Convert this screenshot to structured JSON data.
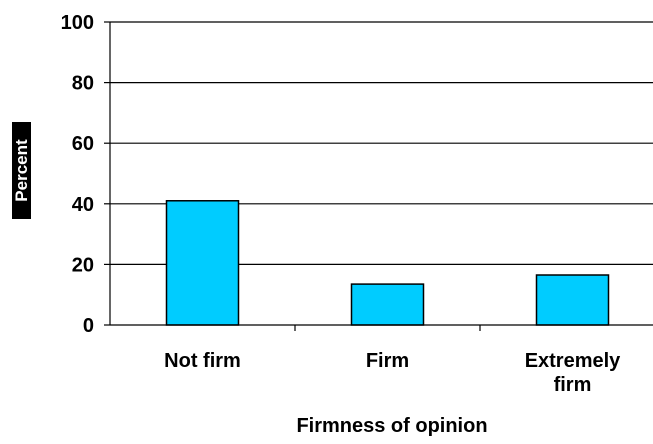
{
  "chart_data": {
    "type": "bar",
    "categories": [
      [
        "Not firm"
      ],
      [
        "Firm"
      ],
      [
        "Extremely",
        "firm"
      ]
    ],
    "values": [
      41,
      13.5,
      16.5
    ],
    "xlabel": "Firmness of opinion",
    "ylabel": "Percent",
    "ylim": [
      0,
      100
    ],
    "yticks": [
      "0",
      "20",
      "40",
      "60",
      "80",
      "100"
    ],
    "grid": true,
    "legend": "none",
    "colors": {
      "bar_fill": "#00ccff",
      "bar_stroke": "#000000",
      "grid": "#000000",
      "axis": "#000000",
      "ylabel_background": "#000000",
      "ylabel_text": "#ffffff"
    }
  }
}
